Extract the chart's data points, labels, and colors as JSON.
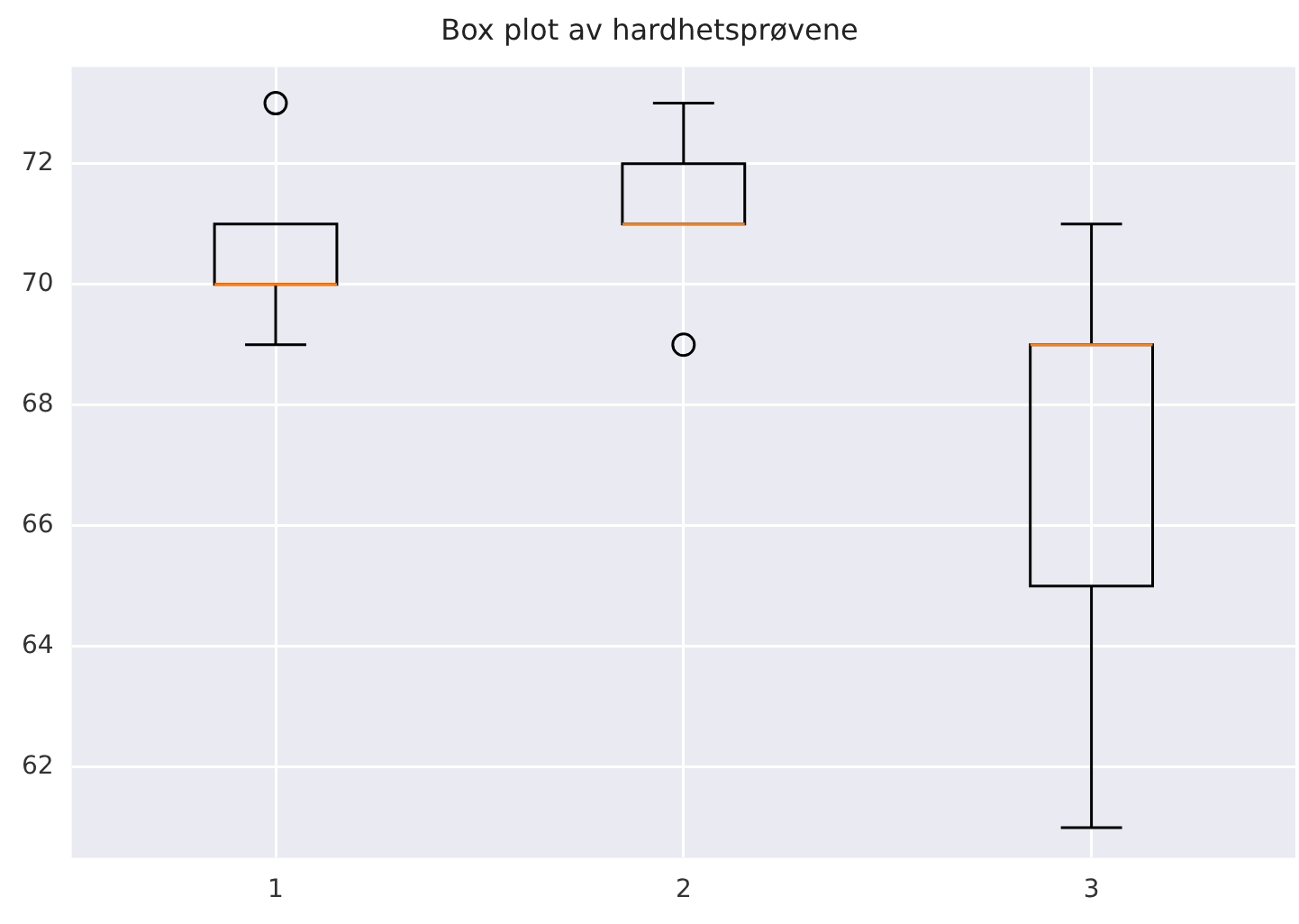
{
  "chart_data": {
    "type": "box",
    "title": "Box plot av hardhetsprøvene",
    "categories": [
      "1",
      "2",
      "3"
    ],
    "series": [
      {
        "color": "#000000",
        "boxes": [
          {
            "low": 69,
            "q1": 70,
            "median": 70,
            "q3": 71,
            "high": 71,
            "outliers": [
              73
            ]
          },
          {
            "low": 71,
            "q1": 71,
            "median": 71,
            "q3": 72,
            "high": 73,
            "outliers": [
              69
            ]
          },
          {
            "low": 61,
            "q1": 65,
            "median": 69,
            "q3": 69,
            "high": 71
          }
        ]
      }
    ],
    "ylim": [
      60.5,
      73.6
    ],
    "yticks": [
      62,
      64,
      66,
      68,
      70,
      72
    ],
    "grid": true,
    "legend": false
  }
}
